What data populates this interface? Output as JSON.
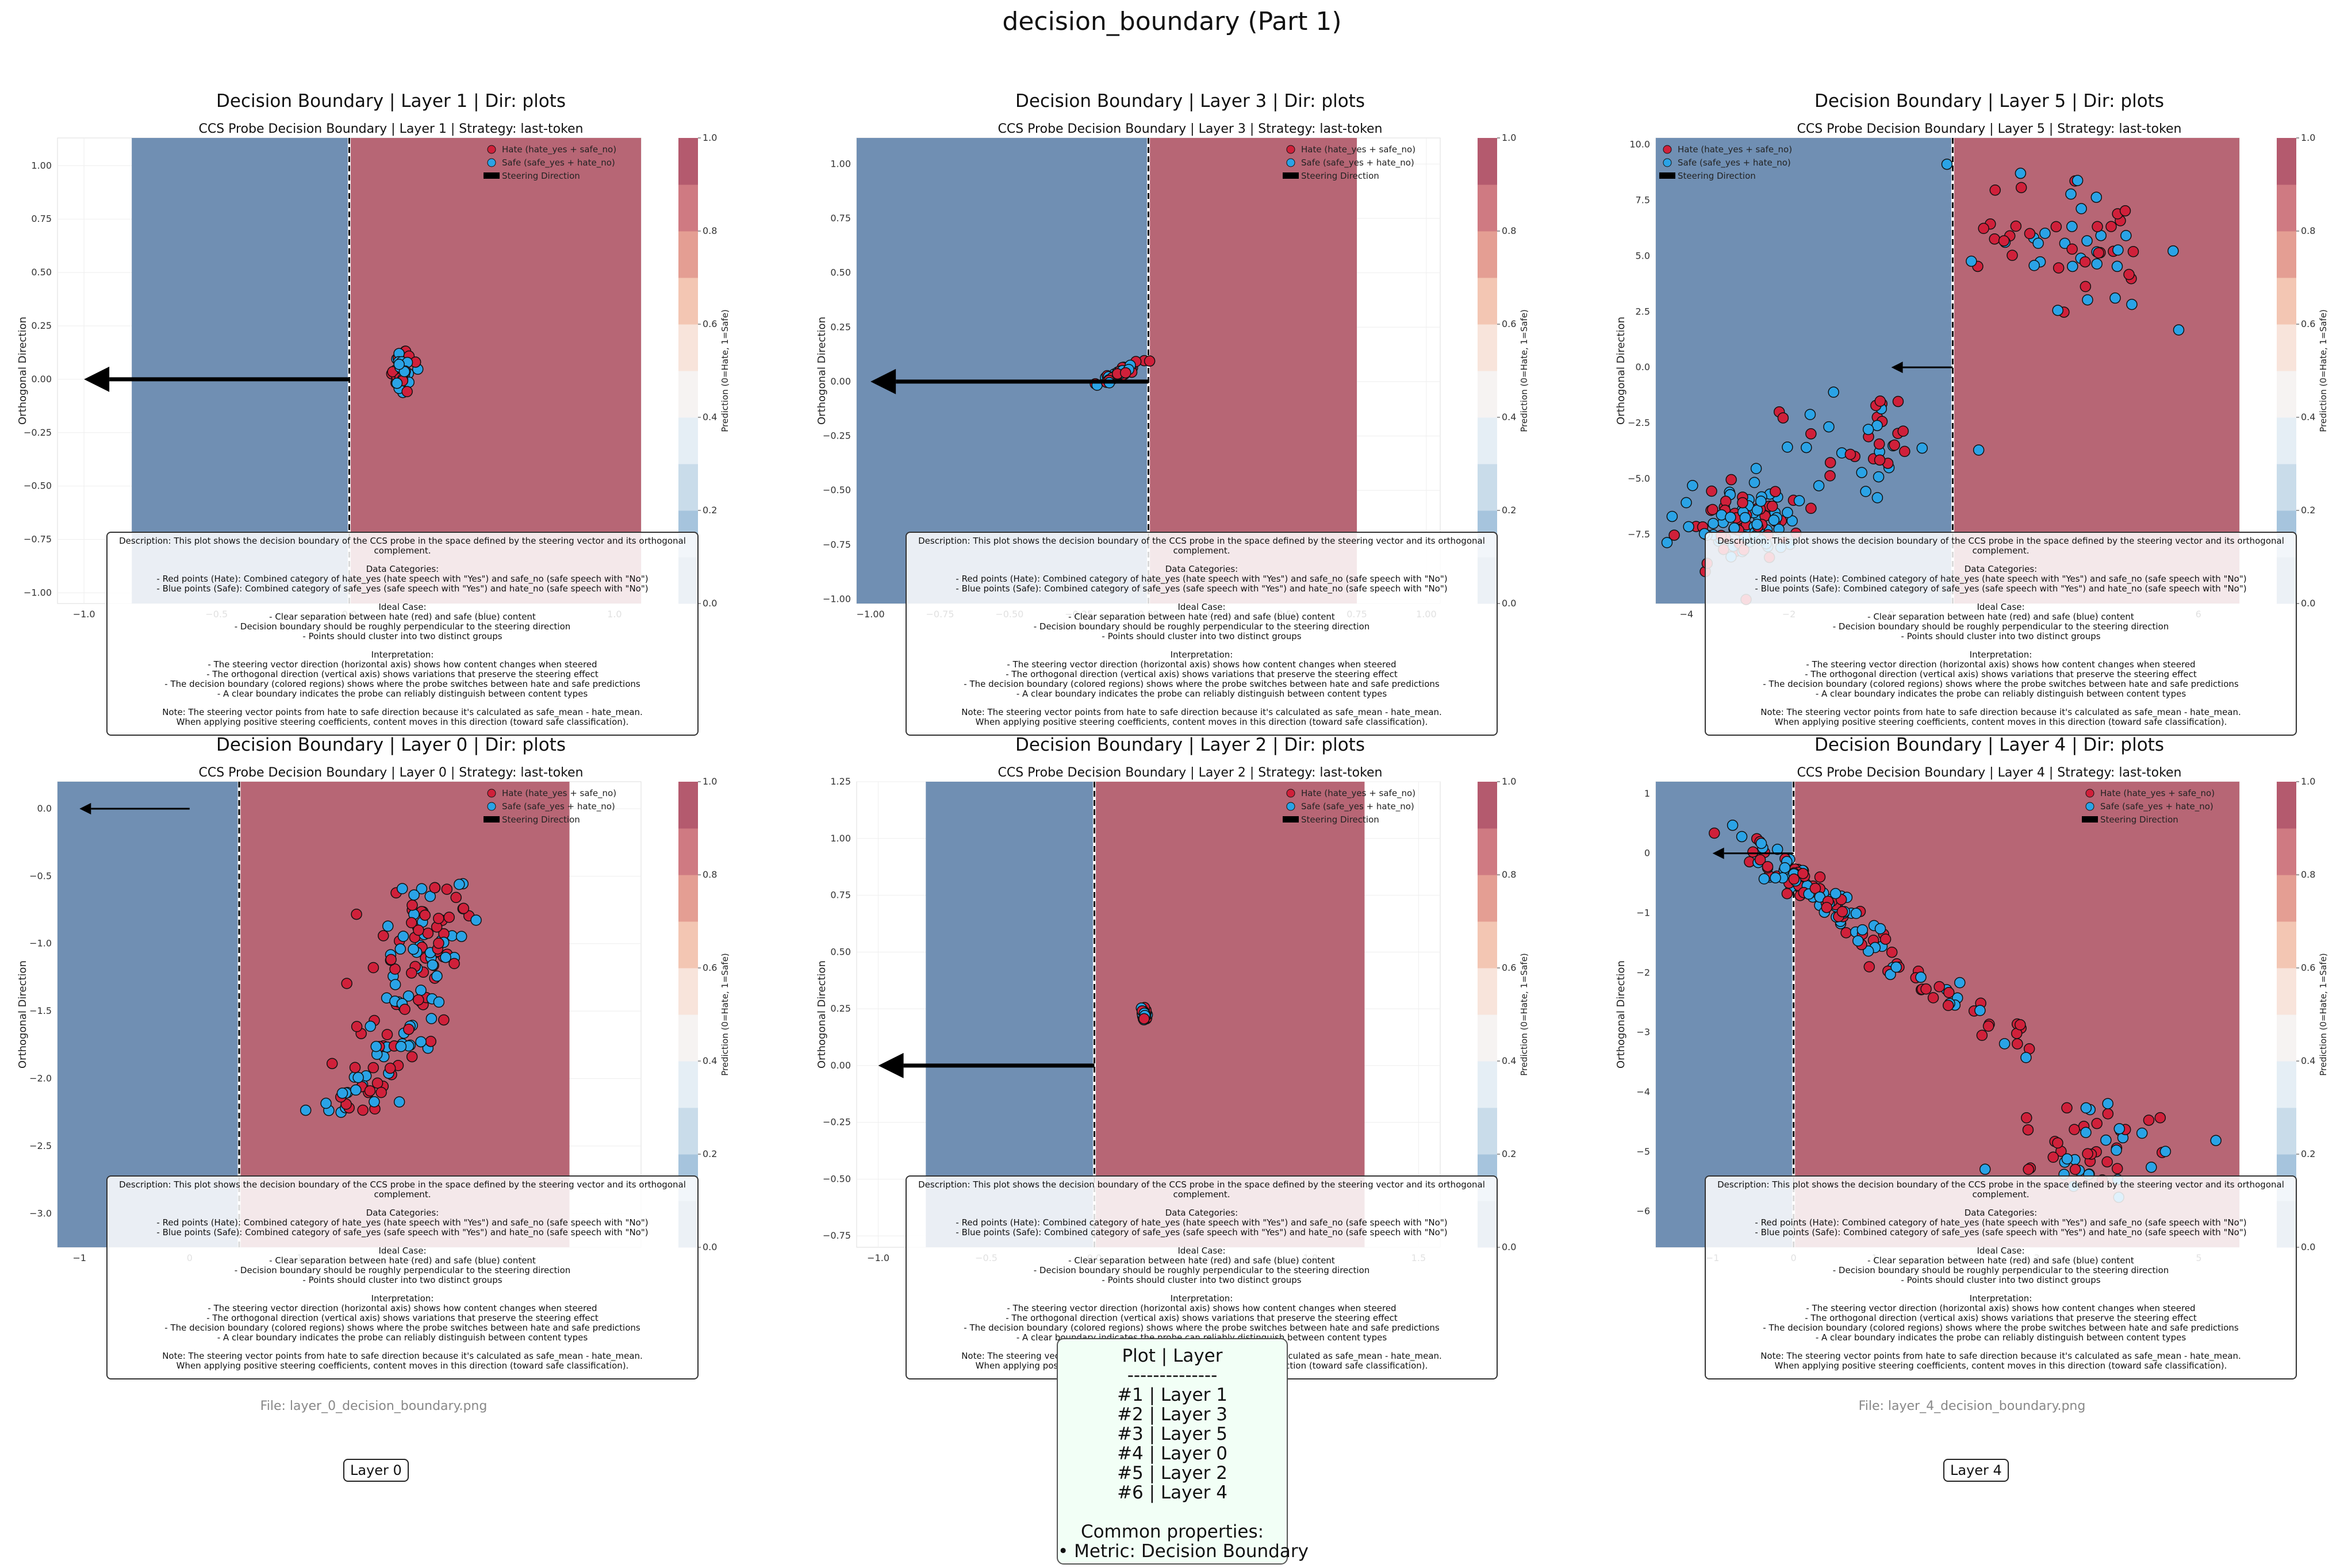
{
  "page": {
    "suptitle": "decision_boundary (Part 1)"
  },
  "common": {
    "ylabel": "Orthogonal Direction",
    "colorbar_label": "Prediction (0=Hate, 1=Safe)",
    "colorbar_ticks": [
      "0.0",
      "0.2",
      "0.4",
      "0.6",
      "0.8",
      "1.0"
    ],
    "legend": {
      "hate": "Hate (hate_yes + safe_no)",
      "safe": "Safe (safe_yes + hate_no)",
      "steer": "Steering Direction"
    },
    "colors": {
      "hate_region": "#b76675",
      "safe_region": "#708fb3",
      "hate_point": "#d0203a",
      "safe_point": "#2aa3e6"
    },
    "description": {
      "intro": "Description: This plot shows the decision boundary of the CCS probe in the space defined by the steering vector and its orthogonal complement.",
      "data_categories": "Data Categories:\n- Red points (Hate): Combined category of hate_yes (hate speech with \"Yes\") and safe_no (safe speech with \"No\")\n- Blue points (Safe): Combined category of safe_yes (safe speech with \"Yes\") and hate_no (safe speech with \"No\")",
      "ideal_case": "Ideal Case:\n- Clear separation between hate (red) and safe (blue) content\n- Decision boundary should be roughly perpendicular to the steering direction\n- Points should cluster into two distinct groups",
      "interpretation": "Interpretation:\n- The steering vector direction (horizontal axis) shows how content changes when steered\n- The orthogonal direction (vertical axis) shows variations that preserve the steering effect\n- The decision boundary (colored regions) shows where the probe switches between hate and safe predictions\n- A clear boundary indicates the probe can reliably distinguish between content types",
      "note": "Note: The steering vector points from hate to safe direction because it's calculated as safe_mean - hate_mean.\nWhen applying positive steering coefficients, content moves in this direction (toward safe classification)."
    }
  },
  "summary": {
    "header": "Plot | Layer",
    "divider": "--------------",
    "rows": [
      "#1 | Layer 1",
      "#2 | Layer 3",
      "#3 | Layer 5",
      "#4 | Layer 0",
      "#5 | Layer 2",
      "#6 | Layer 4"
    ],
    "common_header": "Common properties:",
    "common_item": "• Metric: Decision Boundary"
  },
  "footers": [
    {
      "file": "File: layer_0_decision_boundary.png",
      "layer": "Layer 0"
    },
    {
      "file": "File: layer_4_decision_boundary.png",
      "layer": "Layer 4"
    }
  ],
  "chart_data": [
    {
      "type": "scatter",
      "layer": 1,
      "title": "Decision Boundary | Layer 1 | Dir: plots",
      "subtitle": "CCS Probe Decision Boundary | Layer 1 | Strategy: last-token",
      "xlim": [
        -1.1,
        1.1
      ],
      "ylim": [
        -1.05,
        1.13
      ],
      "x_ticks": [
        -1.0,
        -0.5,
        0.0,
        0.5,
        1.0
      ],
      "y_ticks": [
        -1.0,
        -0.75,
        -0.5,
        -0.25,
        0.0,
        0.25,
        0.5,
        0.75,
        1.0
      ],
      "y_tick_labels": [
        "−1.00",
        "−0.75",
        "−0.50",
        "−0.25",
        "0.00",
        "0.25",
        "0.50",
        "0.75",
        "1.00"
      ],
      "x_tick_labels": [
        "−1.0",
        "−0.5",
        "0.0",
        "0.5",
        "1.0"
      ],
      "boundary_x": 0.0,
      "safe_region_xrange": [
        -0.82,
        0.0
      ],
      "hate_region_xrange": [
        0.0,
        1.25
      ],
      "arrow": {
        "from": [
          0.0,
          0.0
        ],
        "to": [
          -1.0,
          0.0
        ]
      },
      "legend_position": "top-right",
      "clusters": [
        {
          "cx": 0.2,
          "cy": 0.03,
          "sx": 0.015,
          "sy": 0.045,
          "n": 60
        }
      ]
    },
    {
      "type": "scatter",
      "layer": 3,
      "title": "Decision Boundary | Layer 3 | Dir: plots",
      "subtitle": "CCS Probe Decision Boundary | Layer 3 | Strategy: last-token",
      "xlim": [
        -1.05,
        1.05
      ],
      "ylim": [
        -1.02,
        1.12
      ],
      "x_ticks": [
        -1.0,
        -0.75,
        -0.5,
        -0.25,
        0.0,
        0.25,
        0.5,
        0.75,
        1.0
      ],
      "y_ticks": [
        -1.0,
        -0.75,
        -0.5,
        -0.25,
        0.0,
        0.25,
        0.5,
        0.75,
        1.0
      ],
      "y_tick_labels": [
        "−1.00",
        "−0.75",
        "−0.50",
        "−0.25",
        "0.00",
        "0.25",
        "0.50",
        "0.75",
        "1.00"
      ],
      "x_tick_labels": [
        "−1.00",
        "−0.75",
        "−0.50",
        "−0.25",
        "0.00",
        "0.25",
        "0.50",
        "0.75",
        "1.00"
      ],
      "boundary_x": 0.0,
      "safe_region_xrange": [
        -1.05,
        0.0
      ],
      "hate_region_xrange": [
        0.0,
        0.75
      ],
      "arrow": {
        "from": [
          0.0,
          0.0
        ],
        "to": [
          -1.0,
          0.0
        ]
      },
      "legend_position": "top-right",
      "clusters": [
        {
          "cx": -0.1,
          "cy": 0.04,
          "sx": 0.035,
          "sy": 0.03,
          "n": 60,
          "slope": 0.9
        }
      ]
    },
    {
      "type": "scatter",
      "layer": 5,
      "title": "Decision Boundary | Layer 5 | Dir: plots",
      "subtitle": "CCS Probe Decision Boundary | Layer 5 | Strategy: last-token",
      "xlim": [
        -4.6,
        6.8
      ],
      "ylim": [
        -10.6,
        10.3
      ],
      "x_ticks": [
        -4,
        -2,
        0,
        2,
        4,
        6
      ],
      "y_ticks": [
        -7.5,
        -5.0,
        -2.5,
        0.0,
        2.5,
        5.0,
        7.5,
        10.0
      ],
      "y_tick_labels": [
        "−7.5",
        "−5.0",
        "−2.5",
        "0.0",
        "2.5",
        "5.0",
        "7.5",
        "10.0"
      ],
      "x_tick_labels": [
        "−4",
        "−2",
        "0",
        "2",
        "4",
        "6"
      ],
      "boundary_x": 1.2,
      "safe_region_xrange": [
        -4.6,
        1.2
      ],
      "hate_region_xrange": [
        1.2,
        6.8
      ],
      "arrow": {
        "from": [
          1.2,
          0.0
        ],
        "to": [
          0.0,
          0.0
        ]
      },
      "legend_position": "top-left",
      "clusters": [
        {
          "cx": -2.8,
          "cy": -7.0,
          "sx": 0.6,
          "sy": 0.8,
          "n": 110
        },
        {
          "cx": -0.5,
          "cy": -3.5,
          "sx": 0.7,
          "sy": 1.2,
          "n": 40
        },
        {
          "cx": 3.5,
          "cy": 5.5,
          "sx": 1.3,
          "sy": 1.6,
          "n": 60
        }
      ]
    },
    {
      "type": "scatter",
      "layer": 0,
      "title": "Decision Boundary | Layer 0 | Dir: plots",
      "subtitle": "CCS Probe Decision Boundary | Layer 0 | Strategy: last-token",
      "xlim": [
        -1.2,
        4.1
      ],
      "ylim": [
        -3.25,
        0.2
      ],
      "x_ticks": [
        -1,
        0,
        1,
        2,
        3
      ],
      "y_ticks": [
        -3.0,
        -2.5,
        -2.0,
        -1.5,
        -1.0,
        -0.5,
        0.0
      ],
      "y_tick_labels": [
        "−3.0",
        "−2.5",
        "−2.0",
        "−1.5",
        "−1.0",
        "−0.5",
        "0.0"
      ],
      "x_tick_labels": [
        "−1",
        "0",
        "1",
        "2",
        "3"
      ],
      "boundary_x": 0.45,
      "safe_region_xrange": [
        -1.2,
        0.45
      ],
      "hate_region_xrange": [
        0.45,
        3.45
      ],
      "arrow": {
        "from": [
          0.0,
          0.0
        ],
        "to": [
          -1.0,
          0.0
        ]
      },
      "legend_position": "top-right",
      "clusters": [
        {
          "cx": 2.0,
          "cy": -1.4,
          "sx": 0.2,
          "sy": 0.45,
          "n": 150,
          "curve": true
        }
      ]
    },
    {
      "type": "scatter",
      "layer": 2,
      "title": "Decision Boundary | Layer 2 | Dir: plots",
      "subtitle": "CCS Probe Decision Boundary | Layer 2 | Strategy: last-token",
      "xlim": [
        -1.1,
        1.6
      ],
      "ylim": [
        -0.8,
        1.25
      ],
      "x_ticks": [
        -1.0,
        -0.5,
        0.0,
        0.5,
        1.0,
        1.5
      ],
      "y_ticks": [
        -0.75,
        -0.5,
        -0.25,
        0.0,
        0.25,
        0.5,
        0.75,
        1.0,
        1.25
      ],
      "y_tick_labels": [
        "−0.75",
        "−0.50",
        "−0.25",
        "0.00",
        "0.25",
        "0.50",
        "0.75",
        "1.00",
        "1.25"
      ],
      "x_tick_labels": [
        "−1.0",
        "−0.5",
        "0.0",
        "0.5",
        "1.0",
        "1.5"
      ],
      "boundary_x": 0.0,
      "safe_region_xrange": [
        -0.78,
        0.0
      ],
      "hate_region_xrange": [
        0.0,
        1.25
      ],
      "arrow": {
        "from": [
          0.0,
          0.0
        ],
        "to": [
          -1.0,
          0.0
        ]
      },
      "legend_position": "top-right",
      "clusters": [
        {
          "cx": 0.23,
          "cy": 0.23,
          "sx": 0.006,
          "sy": 0.012,
          "n": 40
        }
      ]
    },
    {
      "type": "scatter",
      "layer": 4,
      "title": "Decision Boundary | Layer 4 | Dir: plots",
      "subtitle": "CCS Probe Decision Boundary | Layer 4 | Strategy: last-token",
      "xlim": [
        -1.7,
        5.5
      ],
      "ylim": [
        -6.6,
        1.2
      ],
      "x_ticks": [
        -1,
        0,
        1,
        2,
        3,
        4,
        5
      ],
      "y_ticks": [
        -6,
        -5,
        -4,
        -3,
        -2,
        -1,
        0,
        1
      ],
      "y_tick_labels": [
        "−6",
        "−5",
        "−4",
        "−3",
        "−2",
        "−1",
        "0",
        "1"
      ],
      "x_tick_labels": [
        "−1",
        "0",
        "1",
        "2",
        "3",
        "4",
        "5"
      ],
      "boundary_x": 0.0,
      "safe_region_xrange": [
        -1.7,
        0.0
      ],
      "hate_region_xrange": [
        0.0,
        5.8
      ],
      "arrow": {
        "from": [
          0.0,
          0.0
        ],
        "to": [
          -1.0,
          0.0
        ]
      },
      "legend_position": "top-right",
      "clusters": [
        {
          "cx": 0.2,
          "cy": -0.6,
          "sx": 0.45,
          "sy": 0.5,
          "n": 110,
          "slope": -1.05
        },
        {
          "cx": 1.8,
          "cy": -2.3,
          "sx": 0.7,
          "sy": 0.6,
          "n": 40,
          "slope": -1.0
        },
        {
          "cx": 3.6,
          "cy": -5.0,
          "sx": 0.6,
          "sy": 0.4,
          "n": 50
        }
      ]
    }
  ]
}
